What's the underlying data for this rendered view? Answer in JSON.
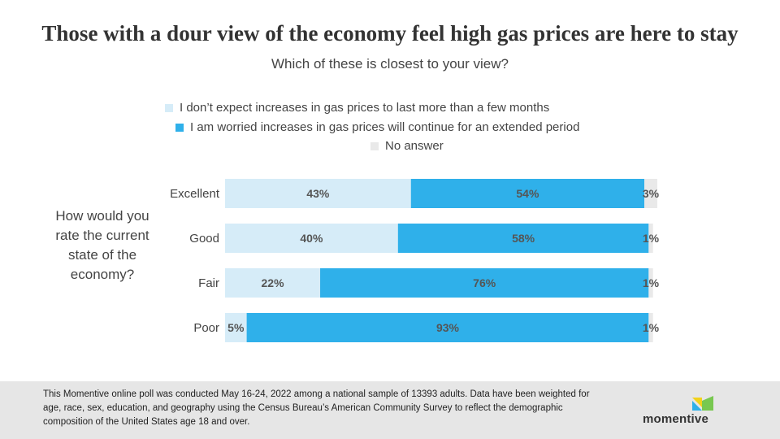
{
  "title": "Those with a dour view of the economy feel high gas prices are here to stay",
  "subtitle": "Which of these is closest to your view?",
  "y_axis_label": "How would you rate the current state of the economy?",
  "footer": {
    "note": "This Momentive online poll was conducted May 16-24, 2022 among a national sample of 13393 adults. Data have been weighted for age, race, sex, education, and geography using the Census Bureau’s American Community Survey to reflect the demographic composition of the United States age 18 and over.",
    "logo_text": "momentive"
  },
  "colors": {
    "light": "#d6ecf8",
    "blue": "#2fb0ea",
    "gray": "#e9e9e9",
    "label_text": "#555555"
  },
  "chart_data": {
    "type": "bar",
    "orientation": "horizontal",
    "stacked": true,
    "title": "Those with a dour view of the economy feel high gas prices are here to stay",
    "subtitle": "Which of these is closest to your view?",
    "ylabel": "How would you rate the current state of the economy?",
    "xlabel": "",
    "xlim": [
      0,
      100
    ],
    "categories": [
      "Excellent",
      "Good",
      "Fair",
      "Poor"
    ],
    "series": [
      {
        "name": "I don’t expect increases in gas prices to last more than a few months",
        "values": [
          43,
          40,
          22,
          5
        ],
        "labels": [
          "43%",
          "40%",
          "22%",
          "5%"
        ]
      },
      {
        "name": "I am worried increases in gas prices will continue for an extended period",
        "values": [
          54,
          58,
          76,
          93
        ],
        "labels": [
          "54%",
          "58%",
          "76%",
          "93%"
        ]
      },
      {
        "name": "No answer",
        "values": [
          3,
          1,
          1,
          1
        ],
        "labels": [
          "3%",
          "1%",
          "1%",
          "1%"
        ]
      }
    ],
    "legend_position": "top"
  }
}
